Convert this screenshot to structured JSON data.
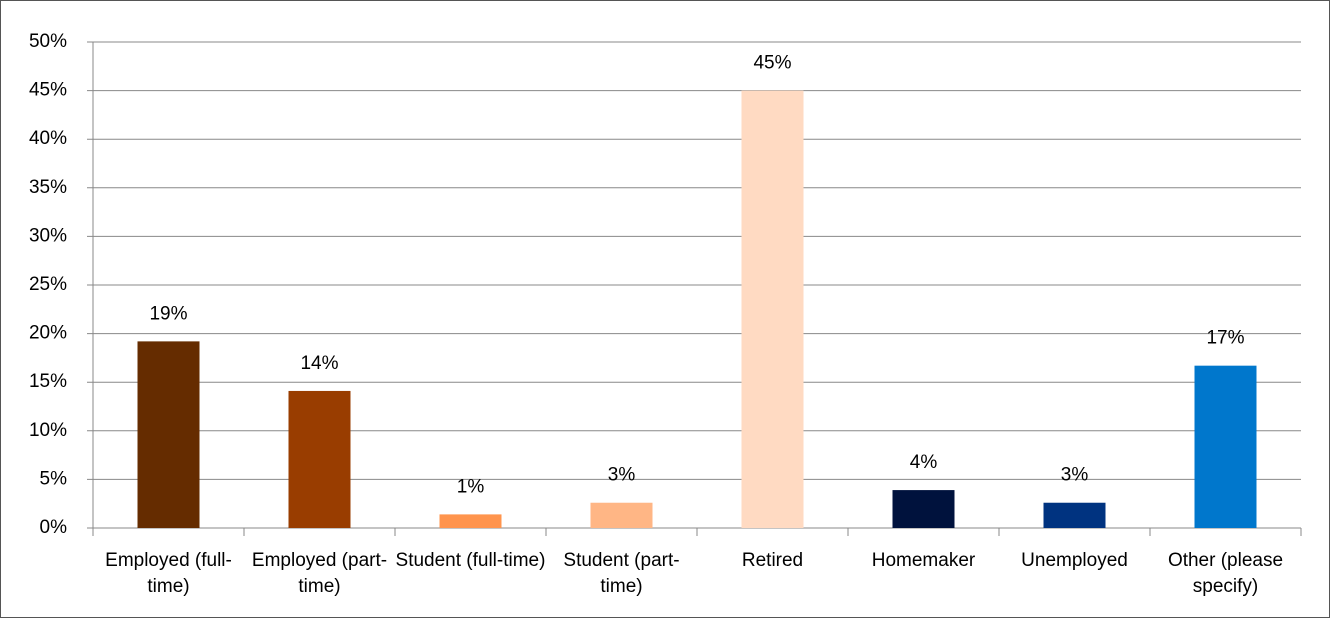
{
  "chart_data": {
    "type": "bar",
    "categories": [
      "Employed (full-time)",
      "Employed (part-time)",
      "Student (full-time)",
      "Student (part-time)",
      "Retired",
      "Homemaker",
      "Unemployed",
      "Other (please specify)"
    ],
    "values": [
      19.2,
      14.1,
      1.4,
      2.6,
      45,
      3.9,
      2.6,
      16.7
    ],
    "value_labels": [
      "19%",
      "14%",
      "1%",
      "3%",
      "45%",
      "4%",
      "3%",
      "17%"
    ],
    "colors": [
      "#652c00",
      "#993d00",
      "#ff944d",
      "#ffb685",
      "#ffdac2",
      "#00123d",
      "#003380",
      "#0077cc"
    ],
    "ylim": [
      0,
      50
    ],
    "yticks": [
      {
        "value": 0,
        "label": "0%"
      },
      {
        "value": 5,
        "label": "5%"
      },
      {
        "value": 10,
        "label": "10%"
      },
      {
        "value": 15,
        "label": "15%"
      },
      {
        "value": 20,
        "label": "20%"
      },
      {
        "value": 25,
        "label": "25%"
      },
      {
        "value": 30,
        "label": "30%"
      },
      {
        "value": 35,
        "label": "35%"
      },
      {
        "value": 40,
        "label": "40%"
      },
      {
        "value": 45,
        "label": "45%"
      },
      {
        "value": 50,
        "label": "50%"
      }
    ],
    "grid": true
  }
}
